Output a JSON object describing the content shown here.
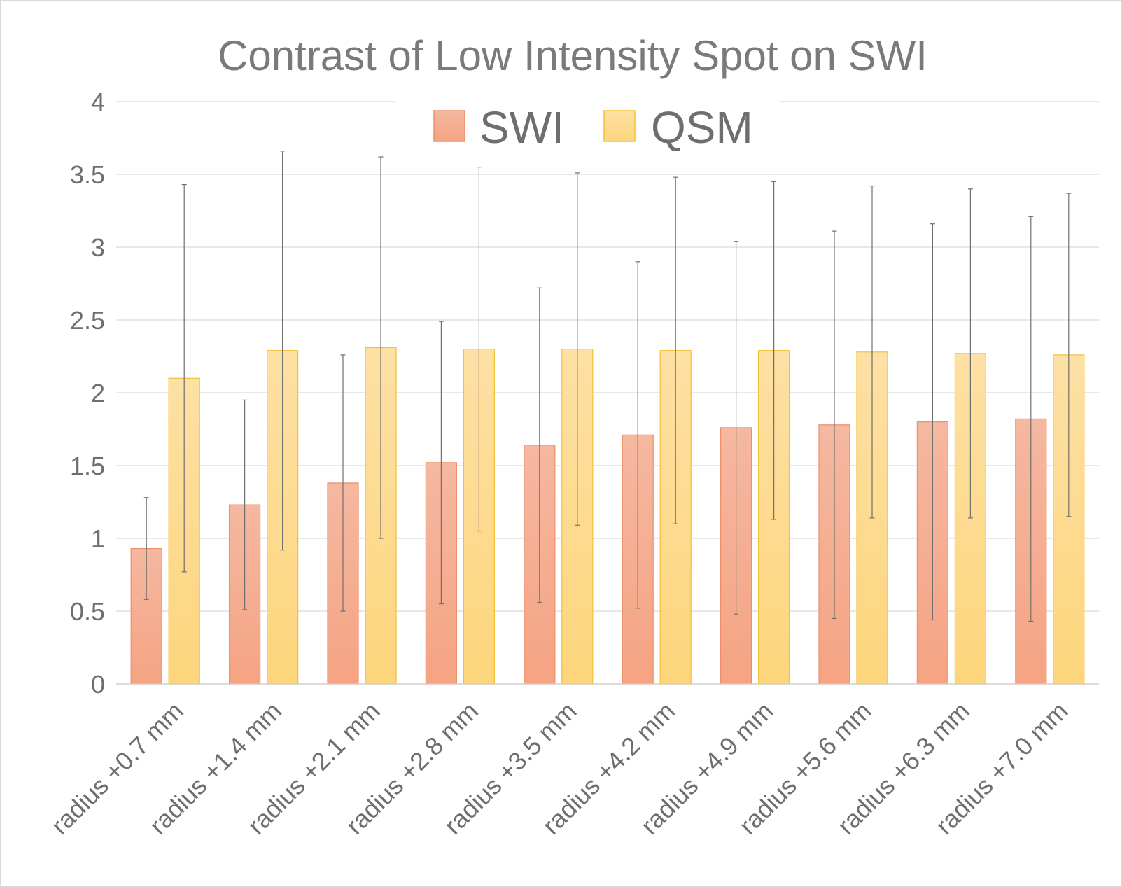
{
  "chart_data": {
    "type": "bar",
    "title": "Contrast of Low Intensity Spot on SWI",
    "xlabel": "",
    "ylabel": "",
    "ylim": [
      0,
      4
    ],
    "yticks": [
      "0",
      "0.5",
      "1",
      "1.5",
      "2",
      "2.5",
      "3",
      "3.5",
      "4"
    ],
    "grid": true,
    "legend_position": "top",
    "error_bars": true,
    "categories": [
      "radius +0.7 mm",
      "radius +1.4 mm",
      "radius +2.1 mm",
      "radius +2.8 mm",
      "radius +3.5 mm",
      "radius +4.2 mm",
      "radius +4.9 mm",
      "radius +5.6 mm",
      "radius +6.3 mm",
      "radius +7.0 mm"
    ],
    "series": [
      {
        "name": "SWI",
        "color": "#f4a582",
        "values": [
          0.93,
          1.23,
          1.38,
          1.52,
          1.64,
          1.71,
          1.76,
          1.78,
          1.8,
          1.82
        ],
        "error": [
          0.35,
          0.72,
          0.88,
          0.97,
          1.08,
          1.19,
          1.28,
          1.33,
          1.36,
          1.39
        ]
      },
      {
        "name": "QSM",
        "color": "#fdd67f",
        "values": [
          2.1,
          2.29,
          2.31,
          2.3,
          2.3,
          2.29,
          2.29,
          2.28,
          2.27,
          2.26
        ],
        "error": [
          1.33,
          1.37,
          1.31,
          1.25,
          1.21,
          1.19,
          1.16,
          1.14,
          1.13,
          1.11
        ]
      }
    ]
  }
}
